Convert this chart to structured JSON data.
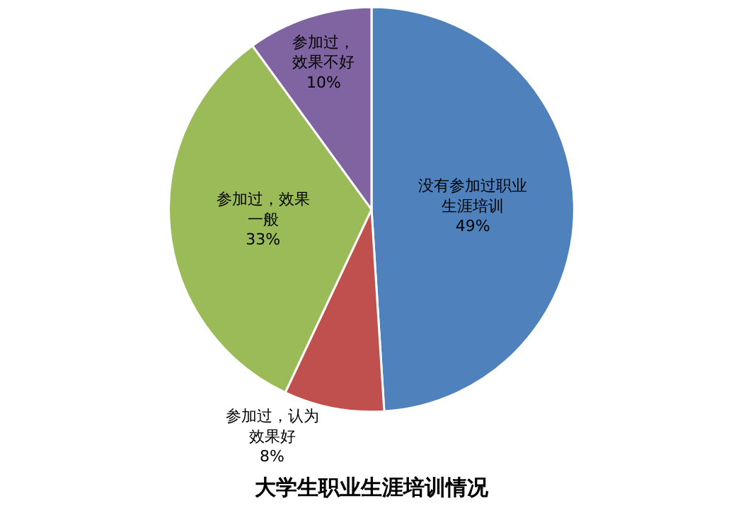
{
  "chart_data": {
    "type": "pie",
    "title": "大学生职业生涯培训情况",
    "categories": [
      "没有参加过职业生涯培训",
      "参加过，认为效果好",
      "参加过，效果一般",
      "参加过，效果不好"
    ],
    "values": [
      49,
      8,
      33,
      10
    ],
    "value_labels": [
      "49%",
      "8%",
      "33%",
      "10%"
    ],
    "colors": [
      "#4f81bd",
      "#c0504d",
      "#9bbb59",
      "#8064a2"
    ],
    "legend": false
  }
}
